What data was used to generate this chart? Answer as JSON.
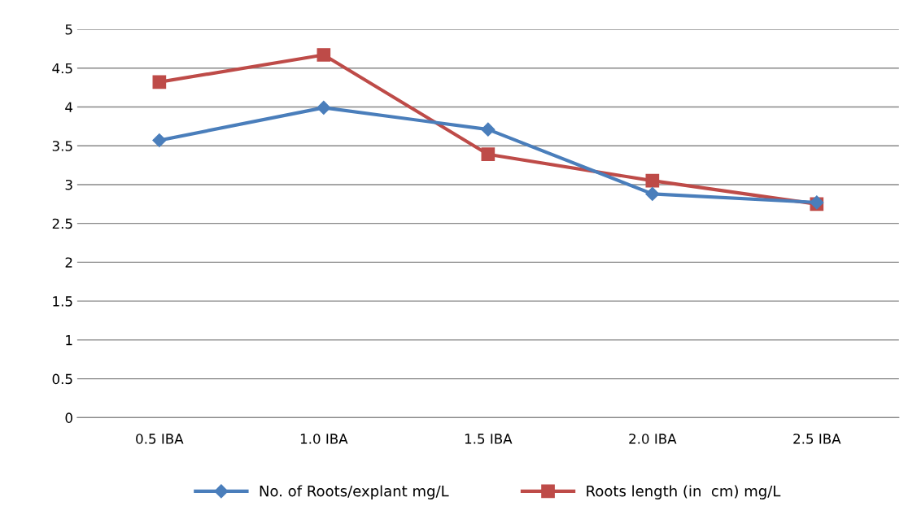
{
  "chart_data": {
    "type": "line",
    "categories": [
      "0.5 IBA",
      "1.0 IBA",
      "1.5 IBA",
      "2.0 IBA",
      "2.5 IBA"
    ],
    "series": [
      {
        "name": "No. of Roots/explant mg/L",
        "color": "#4a7ebb",
        "marker": "diamond",
        "values": [
          3.57,
          3.99,
          3.71,
          2.88,
          2.77
        ]
      },
      {
        "name": "Roots length (in  cm) mg/L",
        "color": "#be4b48",
        "marker": "square",
        "values": [
          4.32,
          4.67,
          3.39,
          3.05,
          2.75
        ]
      }
    ],
    "ylim": [
      0,
      5
    ],
    "yticks": [
      0,
      0.5,
      1,
      1.5,
      2,
      2.5,
      3,
      3.5,
      4,
      4.5,
      5
    ],
    "grid": "y",
    "legend": "bottom"
  }
}
